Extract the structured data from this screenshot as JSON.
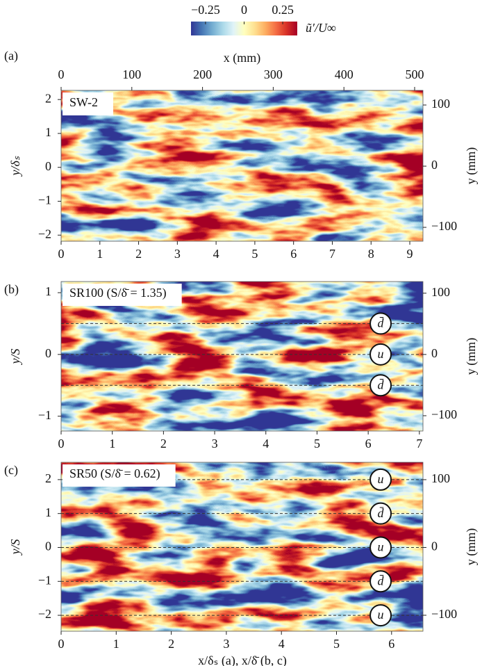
{
  "colorbar": {
    "label": "ũ′/U∞",
    "lim": [
      -0.344,
      0.344
    ],
    "ticks": [
      {
        "value": -0.25,
        "label": "−0.25"
      },
      0,
      0.25
    ],
    "colors": [
      "#313695",
      "#4575b4",
      "#74add1",
      "#abd9e9",
      "#e0f3f8",
      "#ffffbf",
      "#fee090",
      "#fdae61",
      "#f46d43",
      "#d73027",
      "#a50026"
    ]
  },
  "chart_data": [
    {
      "type": "heatmap",
      "panel_label": "(a)",
      "box_label": "SW-2",
      "x2label": "x (mm)",
      "x2lim": [
        0,
        511.8
      ],
      "x2ticks": [
        0,
        100,
        200,
        300,
        400,
        500
      ],
      "xlim": [
        0,
        9.34
      ],
      "xticks": [
        0,
        1,
        2,
        3,
        4,
        5,
        6,
        7,
        8,
        9
      ],
      "ylabel": "y/δₛ",
      "ylim": [
        -2.18,
        2.27
      ],
      "yticks": [
        {
          "value": -2,
          "label": "−2"
        },
        {
          "value": -1,
          "label": "−1"
        },
        0,
        1,
        2
      ],
      "y2label": "y (mm)",
      "y2lim": [
        -122.7,
        123.9
      ],
      "y2ticks": [
        {
          "value": -100,
          "label": "−100"
        },
        0,
        100
      ]
    },
    {
      "type": "heatmap",
      "panel_label": "(b)",
      "box_label": "SR100 (S/δ̄ = 1.35)",
      "xlim": [
        0,
        7.07
      ],
      "xticks": [
        0,
        1,
        2,
        3,
        4,
        5,
        6,
        7
      ],
      "ylabel": "y/S",
      "ylim": [
        -1.24,
        1.18
      ],
      "yticks": [
        {
          "value": -1,
          "label": "−1"
        },
        0,
        1
      ],
      "y2label": "y (mm)",
      "y2lim": [
        -125,
        119
      ],
      "y2ticks": [
        {
          "value": -100,
          "label": "−100"
        },
        0,
        100
      ],
      "lines": [
        {
          "value": 0.5,
          "label": "d̄"
        },
        {
          "value": 0,
          "label": "u"
        },
        {
          "value": -0.5,
          "label": "d̄"
        }
      ]
    },
    {
      "type": "heatmap",
      "panel_label": "(c)",
      "box_label": "SR50 (S/δ̄ = 0.62)",
      "xlabel": "x/δₛ (a), x/δ̄ (b, c)",
      "xlim": [
        0,
        6.57
      ],
      "xticks": [
        0,
        1,
        2,
        3,
        4,
        5,
        6
      ],
      "ylabel": "y/S",
      "ylim": [
        -2.47,
        2.51
      ],
      "yticks": [
        {
          "value": -2,
          "label": "−2"
        },
        {
          "value": -1,
          "label": "−1"
        },
        0,
        1,
        2
      ],
      "y2label": "y (mm)",
      "y2lim": [
        -123.6,
        125.6
      ],
      "y2ticks": [
        {
          "value": -100,
          "label": "−100"
        },
        0,
        100
      ],
      "lines": [
        {
          "value": 2,
          "label": "u"
        },
        {
          "value": 1,
          "label": "d̄"
        },
        {
          "value": 0,
          "label": "u"
        },
        {
          "value": -1,
          "label": "d̄"
        },
        {
          "value": -2,
          "label": "u"
        }
      ]
    }
  ]
}
